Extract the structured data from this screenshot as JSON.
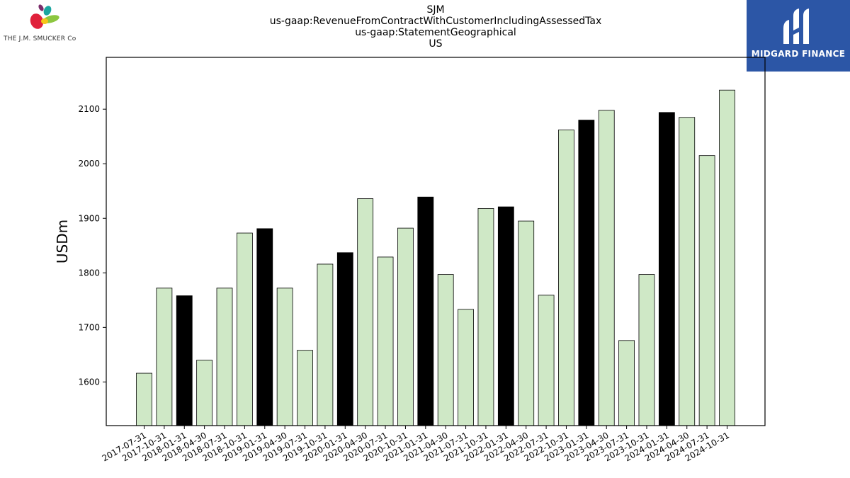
{
  "header": {
    "line1": "SJM",
    "line2": "us-gaap:RevenueFromContractWithCustomerIncludingAssessedTax",
    "line3": "us-gaap:StatementGeographical",
    "line4": "US"
  },
  "logos": {
    "left_text": "THE J.M. SMUCKER Co",
    "right_text": "MIDGARD FINANCE",
    "right_bg": "#2c56a6"
  },
  "colors": {
    "bar_light": "#cfe8c6",
    "bar_dark": "#000000"
  },
  "chart_data": {
    "type": "bar",
    "title": "",
    "xlabel": "",
    "ylabel": "USDm",
    "ylim": [
      1520,
      2195
    ],
    "yticks": [
      1600,
      1700,
      1800,
      1900,
      2000,
      2100
    ],
    "grid": false,
    "categories": [
      "2017-07-31",
      "2017-10-31",
      "2018-01-31",
      "2018-04-30",
      "2018-07-31",
      "2018-10-31",
      "2019-01-31",
      "2019-04-30",
      "2019-07-31",
      "2019-10-31",
      "2020-01-31",
      "2020-04-30",
      "2020-07-31",
      "2020-10-31",
      "2021-01-31",
      "2021-04-30",
      "2021-07-31",
      "2021-10-31",
      "2022-01-31",
      "2022-04-30",
      "2022-07-31",
      "2022-10-31",
      "2023-01-31",
      "2023-04-30",
      "2023-07-31",
      "2023-10-31",
      "2024-01-31",
      "2024-04-30",
      "2024-07-31",
      "2024-10-31"
    ],
    "values": [
      1616,
      1772,
      1758,
      1640,
      1772,
      1873,
      1881,
      1772,
      1658,
      1816,
      1837,
      1936,
      1829,
      1882,
      1939,
      1797,
      1733,
      1918,
      1921,
      1895,
      1759,
      2062,
      2080,
      2098,
      1676,
      1797,
      2094,
      2085,
      2015,
      2135
    ],
    "highlight": [
      false,
      false,
      true,
      false,
      false,
      false,
      true,
      false,
      false,
      false,
      true,
      false,
      false,
      false,
      true,
      false,
      false,
      false,
      true,
      false,
      false,
      false,
      true,
      false,
      false,
      false,
      true,
      false,
      false,
      false
    ]
  }
}
